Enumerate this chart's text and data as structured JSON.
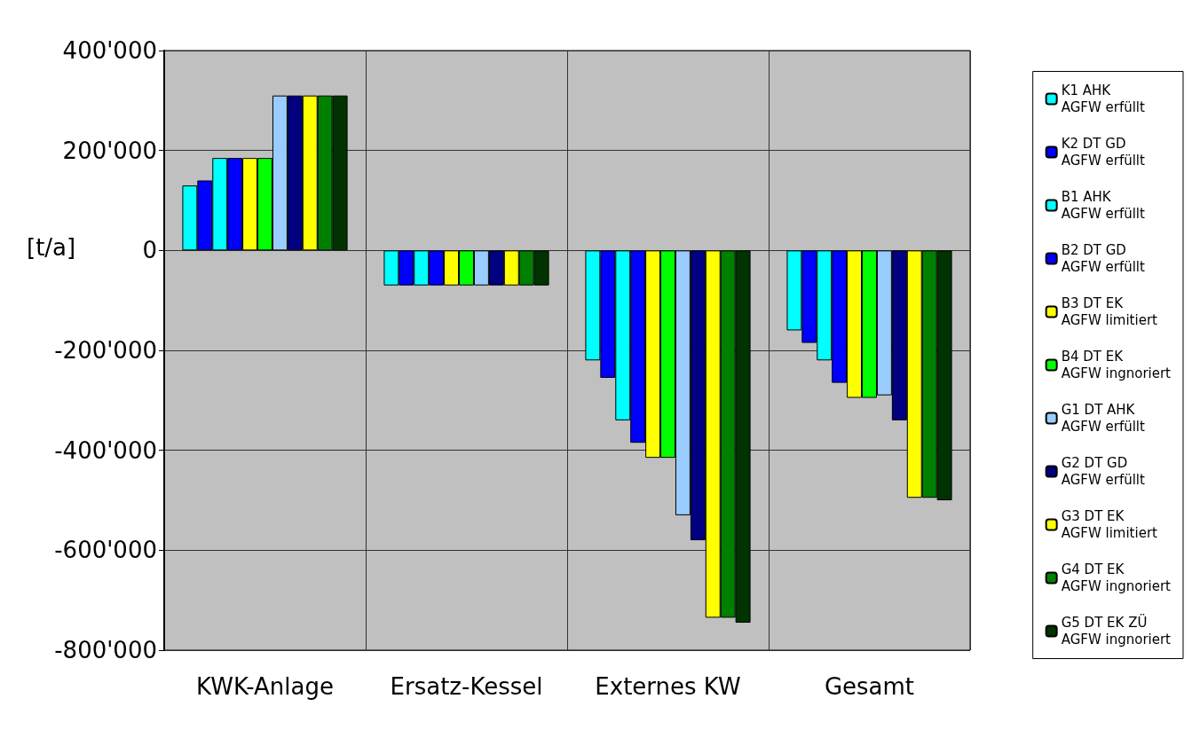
{
  "chart_data": {
    "type": "bar",
    "ylabel": "[t/a]",
    "categories": [
      "KWK-Anlage",
      "Ersatz-Kessel",
      "Externes KW",
      "Gesamt"
    ],
    "ylim": [
      -800000,
      400000
    ],
    "yticks": [
      {
        "value": -800000,
        "label": "-800'000"
      },
      {
        "value": -600000,
        "label": "-600'000"
      },
      {
        "value": -400000,
        "label": "-400'000"
      },
      {
        "value": -200000,
        "label": "-200'000"
      },
      0,
      {
        "value": 200000,
        "label": "200'000"
      },
      {
        "value": 400000,
        "label": "400'000"
      }
    ],
    "grid": true,
    "legend": "right",
    "series": [
      {
        "name": "K1 AHK\nAGFW erfüllt",
        "color": "#00ffff",
        "values": [
          130000,
          -70000,
          -220000,
          -160000
        ]
      },
      {
        "name": "K2 DT GD\nAGFW erfüllt",
        "color": "#0000ff",
        "values": [
          140000,
          -70000,
          -255000,
          -185000
        ]
      },
      {
        "name": "B1 AHK\nAGFW erfüllt",
        "color": "#00ffff",
        "values": [
          185000,
          -70000,
          -340000,
          -220000
        ]
      },
      {
        "name": "B2 DT GD\nAGFW erfüllt",
        "color": "#0000ff",
        "values": [
          185000,
          -70000,
          -385000,
          -265000
        ]
      },
      {
        "name": "B3 DT EK\nAGFW limitiert",
        "color": "#ffff00",
        "values": [
          185000,
          -70000,
          -415000,
          -295000
        ]
      },
      {
        "name": "B4 DT EK\nAGFW ingnoriert",
        "color": "#00ff00",
        "values": [
          185000,
          -70000,
          -415000,
          -295000
        ]
      },
      {
        "name": "G1 DT AHK\nAGFW erfüllt",
        "color": "#99ccff",
        "values": [
          310000,
          -70000,
          -530000,
          -290000
        ]
      },
      {
        "name": "G2 DT GD\nAGFW erfüllt",
        "color": "#000080",
        "values": [
          310000,
          -70000,
          -580000,
          -340000
        ]
      },
      {
        "name": "G3 DT EK\nAGFW limitiert",
        "color": "#ffff00",
        "values": [
          310000,
          -70000,
          -735000,
          -495000
        ]
      },
      {
        "name": "G4 DT EK\nAGFW ingnoriert",
        "color": "#008000",
        "values": [
          310000,
          -70000,
          -735000,
          -495000
        ]
      },
      {
        "name": "G5 DT EK ZÜ\nAGFW ingnoriert",
        "color": "#003300",
        "values": [
          310000,
          -70000,
          -745000,
          -500000
        ]
      }
    ]
  }
}
